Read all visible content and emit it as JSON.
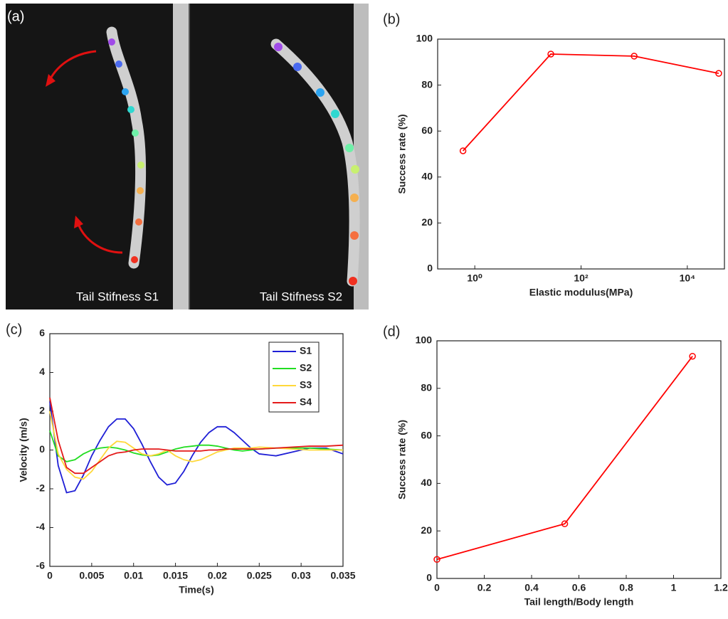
{
  "panel_labels": [
    "(a)",
    "(b)",
    "(c)",
    "(d)"
  ],
  "photo": {
    "captions": [
      "Tail Stifness S1",
      "Tail Stifness S2"
    ]
  },
  "chart_data": [
    {
      "type": "line",
      "xlabel": "Elastic modulus(MPa)",
      "ylabel": "Success rate (%)",
      "xscale": "log",
      "xlim": [
        0.2,
        50000
      ],
      "ylim": [
        0,
        100
      ],
      "xticks": [
        {
          "value": 1,
          "label": "10⁰"
        },
        {
          "value": 100,
          "label": "10²"
        },
        {
          "value": 10000,
          "label": "10⁴"
        }
      ],
      "yticks": [
        0,
        20,
        40,
        60,
        80,
        100
      ],
      "marker": "circle",
      "x": [
        0.6,
        27,
        1000,
        39000
      ],
      "series": [
        {
          "color": "#ff0000",
          "values": [
            51.4,
            93.5,
            92.6,
            85.1
          ]
        }
      ]
    },
    {
      "type": "line",
      "xlabel": "Time(s)",
      "ylabel": "Velocity (m/s)",
      "xlim": [
        0,
        0.035
      ],
      "ylim": [
        -6,
        6
      ],
      "xticks": [
        0,
        0.005,
        0.01,
        0.015,
        0.02,
        0.025,
        0.03,
        0.035
      ],
      "yticks": [
        -6,
        -4,
        -2,
        0,
        2,
        4,
        6
      ],
      "legend": "upper right",
      "x": [
        0,
        0.001,
        0.002,
        0.003,
        0.004,
        0.005,
        0.006,
        0.007,
        0.008,
        0.009,
        0.01,
        0.011,
        0.012,
        0.013,
        0.014,
        0.015,
        0.016,
        0.017,
        0.018,
        0.019,
        0.02,
        0.021,
        0.022,
        0.023,
        0.024,
        0.025,
        0.027,
        0.029,
        0.031,
        0.033,
        0.035
      ],
      "series": [
        {
          "name": "S1",
          "color": "#1f1fd6",
          "values": [
            2.5,
            -0.8,
            -2.2,
            -2.1,
            -1.3,
            -0.3,
            0.5,
            1.2,
            1.6,
            1.6,
            1.1,
            0.3,
            -0.6,
            -1.4,
            -1.8,
            -1.7,
            -1.1,
            -0.3,
            0.4,
            0.9,
            1.2,
            1.2,
            0.9,
            0.5,
            0.1,
            -0.2,
            -0.3,
            -0.1,
            0.1,
            0.1,
            -0.2
          ]
        },
        {
          "name": "S2",
          "color": "#22dd22",
          "values": [
            1.0,
            -0.3,
            -0.6,
            -0.5,
            -0.2,
            0.0,
            0.1,
            0.15,
            0.1,
            0.0,
            -0.15,
            -0.25,
            -0.3,
            -0.25,
            -0.1,
            0.05,
            0.15,
            0.2,
            0.25,
            0.25,
            0.2,
            0.1,
            0.0,
            -0.05,
            0.0,
            0.05,
            0.1,
            0.1,
            0.1,
            0.05,
            0.0
          ]
        },
        {
          "name": "S3",
          "color": "#ffd83a",
          "values": [
            2.0,
            -0.2,
            -1.0,
            -1.4,
            -1.5,
            -1.1,
            -0.5,
            0.1,
            0.45,
            0.4,
            0.1,
            -0.2,
            -0.3,
            -0.2,
            0.0,
            -0.3,
            -0.5,
            -0.6,
            -0.5,
            -0.3,
            -0.1,
            0.0,
            0.1,
            0.1,
            0.1,
            0.15,
            0.1,
            0.05,
            0.0,
            0.0,
            0.0
          ]
        },
        {
          "name": "S4",
          "color": "#e41a1a",
          "values": [
            2.7,
            0.5,
            -0.9,
            -1.2,
            -1.2,
            -0.9,
            -0.6,
            -0.3,
            -0.15,
            -0.1,
            0.0,
            0.05,
            0.05,
            0.05,
            0.0,
            -0.05,
            -0.05,
            -0.05,
            -0.05,
            0.0,
            0.0,
            0.05,
            0.05,
            0.05,
            0.05,
            0.05,
            0.1,
            0.15,
            0.2,
            0.2,
            0.25
          ]
        }
      ]
    },
    {
      "type": "line",
      "xlabel": "Tail length/Body length",
      "ylabel": "Success rate (%)",
      "xlim": [
        0,
        1.2
      ],
      "ylim": [
        0,
        100
      ],
      "xticks": [
        0,
        0.2,
        0.4,
        0.6,
        0.8,
        1,
        1.2
      ],
      "yticks": [
        0,
        20,
        40,
        60,
        80,
        100
      ],
      "marker": "circle",
      "x": [
        0,
        0.54,
        1.08
      ],
      "series": [
        {
          "color": "#ff0000",
          "values": [
            8,
            23,
            93.5
          ]
        }
      ]
    }
  ]
}
